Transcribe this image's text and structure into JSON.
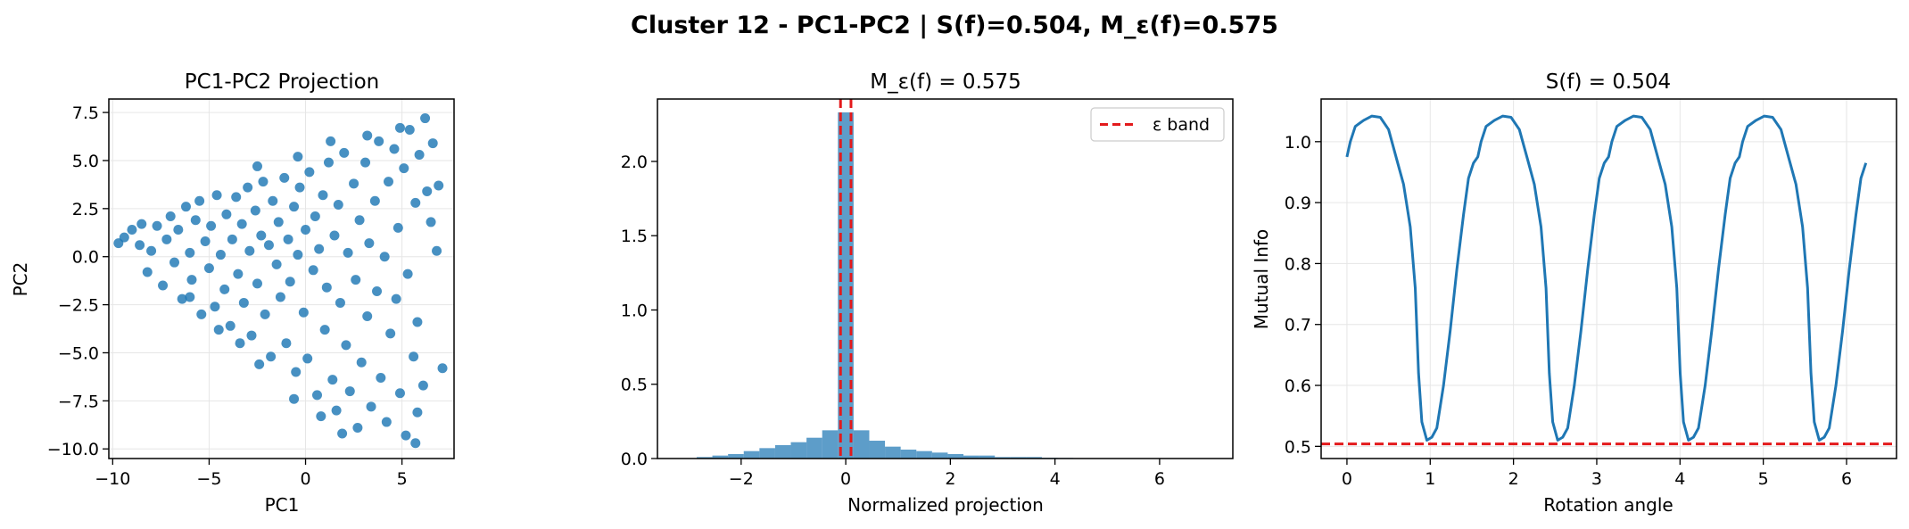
{
  "figure_title": "Cluster 12 - PC1-PC2 | S(f)=0.504, M_ε(f)=0.575",
  "colors": {
    "primary": "#1f77b4",
    "reference": "#e31a1c",
    "grid": "#e6e6e6"
  },
  "chart_data": [
    {
      "type": "scatter",
      "title": "PC1-PC2 Projection",
      "xlabel": "PC1",
      "ylabel": "PC2",
      "xlim": [
        -10.2,
        7.7
      ],
      "ylim": [
        -10.5,
        8.2
      ],
      "xticks": [
        -10,
        -5,
        0,
        5
      ],
      "yticks": [
        -10.0,
        -7.5,
        -5.0,
        -2.5,
        0.0,
        2.5,
        5.0,
        7.5
      ],
      "xtick_labels": [
        "−10",
        "−5",
        "0",
        "5"
      ],
      "ytick_labels": [
        "−10.0",
        "−7.5",
        "−5.0",
        "−2.5",
        "0.0",
        "2.5",
        "5.0",
        "7.5"
      ],
      "grid": true,
      "points": [
        [
          -9.7,
          0.7
        ],
        [
          -9.4,
          1.0
        ],
        [
          -9.0,
          1.4
        ],
        [
          -8.6,
          0.6
        ],
        [
          -8.5,
          1.7
        ],
        [
          -8.2,
          -0.8
        ],
        [
          -8.0,
          0.3
        ],
        [
          -7.7,
          1.6
        ],
        [
          -7.4,
          -1.5
        ],
        [
          -7.2,
          0.9
        ],
        [
          -7.0,
          2.1
        ],
        [
          -6.8,
          -0.3
        ],
        [
          -6.6,
          1.4
        ],
        [
          -6.4,
          -2.2
        ],
        [
          -6.2,
          2.6
        ],
        [
          -6.0,
          0.2
        ],
        [
          -5.9,
          -1.2
        ],
        [
          -5.7,
          1.9
        ],
        [
          -5.5,
          2.9
        ],
        [
          -5.4,
          -3.0
        ],
        [
          -5.2,
          0.8
        ],
        [
          -5.0,
          -0.6
        ],
        [
          -4.9,
          1.6
        ],
        [
          -4.7,
          -2.6
        ],
        [
          -4.6,
          3.2
        ],
        [
          -4.4,
          0.1
        ],
        [
          -4.2,
          -1.7
        ],
        [
          -4.1,
          2.2
        ],
        [
          -3.9,
          -3.6
        ],
        [
          -3.8,
          0.9
        ],
        [
          -3.6,
          3.1
        ],
        [
          -3.5,
          -0.9
        ],
        [
          -3.3,
          1.7
        ],
        [
          -3.2,
          -2.4
        ],
        [
          -3.0,
          3.6
        ],
        [
          -2.9,
          0.3
        ],
        [
          -2.8,
          -4.1
        ],
        [
          -2.6,
          2.4
        ],
        [
          -2.5,
          -1.4
        ],
        [
          -2.3,
          1.1
        ],
        [
          -2.2,
          3.9
        ],
        [
          -2.1,
          -3.0
        ],
        [
          -1.9,
          0.6
        ],
        [
          -1.8,
          -5.2
        ],
        [
          -1.7,
          2.9
        ],
        [
          -1.5,
          -0.4
        ],
        [
          -1.4,
          1.8
        ],
        [
          -1.3,
          -2.1
        ],
        [
          -1.1,
          4.1
        ],
        [
          -1.0,
          -4.5
        ],
        [
          -0.9,
          0.9
        ],
        [
          -0.8,
          -1.3
        ],
        [
          -0.6,
          2.6
        ],
        [
          -0.5,
          -6.0
        ],
        [
          -0.4,
          0.1
        ],
        [
          -0.3,
          3.6
        ],
        [
          -0.1,
          -2.9
        ],
        [
          0.0,
          1.4
        ],
        [
          0.1,
          -5.3
        ],
        [
          0.2,
          4.4
        ],
        [
          0.4,
          -0.7
        ],
        [
          0.5,
          2.1
        ],
        [
          0.6,
          -7.2
        ],
        [
          0.7,
          0.4
        ],
        [
          0.9,
          3.2
        ],
        [
          1.0,
          -3.8
        ],
        [
          1.1,
          -1.6
        ],
        [
          1.2,
          4.9
        ],
        [
          1.4,
          -6.4
        ],
        [
          1.5,
          1.1
        ],
        [
          1.6,
          -8.0
        ],
        [
          1.7,
          2.7
        ],
        [
          1.8,
          -2.4
        ],
        [
          2.0,
          5.4
        ],
        [
          2.1,
          -4.6
        ],
        [
          2.2,
          0.2
        ],
        [
          2.3,
          -7.0
        ],
        [
          2.5,
          3.8
        ],
        [
          2.6,
          -1.2
        ],
        [
          2.7,
          -8.9
        ],
        [
          2.8,
          1.9
        ],
        [
          2.9,
          -5.5
        ],
        [
          3.1,
          4.9
        ],
        [
          3.2,
          -3.1
        ],
        [
          3.3,
          0.7
        ],
        [
          3.4,
          -7.8
        ],
        [
          3.6,
          2.9
        ],
        [
          3.7,
          -1.8
        ],
        [
          3.8,
          6.0
        ],
        [
          3.9,
          -6.3
        ],
        [
          4.1,
          0.0
        ],
        [
          4.2,
          -8.6
        ],
        [
          4.3,
          3.9
        ],
        [
          4.4,
          -4.0
        ],
        [
          4.6,
          5.6
        ],
        [
          4.7,
          -2.2
        ],
        [
          4.8,
          1.5
        ],
        [
          4.9,
          -7.1
        ],
        [
          5.1,
          4.6
        ],
        [
          5.2,
          -9.3
        ],
        [
          5.3,
          -0.9
        ],
        [
          5.4,
          6.6
        ],
        [
          5.6,
          -5.2
        ],
        [
          5.7,
          2.8
        ],
        [
          5.8,
          -8.1
        ],
        [
          5.9,
          5.3
        ],
        [
          6.1,
          -6.7
        ],
        [
          6.2,
          7.2
        ],
        [
          6.3,
          3.4
        ],
        [
          6.6,
          5.9
        ],
        [
          6.8,
          0.3
        ],
        [
          7.1,
          -5.8
        ],
        [
          -6.0,
          -2.1
        ],
        [
          -4.5,
          -3.8
        ],
        [
          -3.4,
          -4.5
        ],
        [
          -2.4,
          -5.6
        ],
        [
          -0.6,
          -7.4
        ],
        [
          0.8,
          -8.3
        ],
        [
          1.9,
          -9.2
        ],
        [
          5.7,
          -9.7
        ],
        [
          4.9,
          6.7
        ],
        [
          3.2,
          6.3
        ],
        [
          1.3,
          6.0
        ],
        [
          -0.4,
          5.2
        ],
        [
          -2.5,
          4.7
        ],
        [
          5.8,
          -3.4
        ],
        [
          6.5,
          1.8
        ],
        [
          6.9,
          3.7
        ]
      ]
    },
    {
      "type": "bar",
      "title": "M_ε(f) = 0.575",
      "xlabel": "Normalized projection",
      "ylabel": "",
      "xlim": [
        -3.6,
        7.4
      ],
      "ylim": [
        0,
        2.42
      ],
      "xticks": [
        -2,
        0,
        2,
        4,
        6
      ],
      "yticks": [
        0.0,
        0.5,
        1.0,
        1.5,
        2.0
      ],
      "xtick_labels": [
        "−2",
        "0",
        "2",
        "4",
        "6"
      ],
      "ytick_labels": [
        "0.0",
        "0.5",
        "1.0",
        "1.5",
        "2.0"
      ],
      "grid": false,
      "bins": [
        {
          "x0": -2.85,
          "x1": -2.55,
          "h": 0.01
        },
        {
          "x0": -2.55,
          "x1": -2.25,
          "h": 0.02
        },
        {
          "x0": -2.25,
          "x1": -1.95,
          "h": 0.03
        },
        {
          "x0": -1.95,
          "x1": -1.65,
          "h": 0.05
        },
        {
          "x0": -1.65,
          "x1": -1.35,
          "h": 0.07
        },
        {
          "x0": -1.35,
          "x1": -1.05,
          "h": 0.09
        },
        {
          "x0": -1.05,
          "x1": -0.75,
          "h": 0.11
        },
        {
          "x0": -0.75,
          "x1": -0.45,
          "h": 0.14
        },
        {
          "x0": -0.45,
          "x1": -0.15,
          "h": 0.19
        },
        {
          "x0": -0.15,
          "x1": 0.15,
          "h": 2.33
        },
        {
          "x0": 0.15,
          "x1": 0.45,
          "h": 0.19
        },
        {
          "x0": 0.45,
          "x1": 0.75,
          "h": 0.12
        },
        {
          "x0": 0.75,
          "x1": 1.05,
          "h": 0.08
        },
        {
          "x0": 1.05,
          "x1": 1.35,
          "h": 0.06
        },
        {
          "x0": 1.35,
          "x1": 1.65,
          "h": 0.05
        },
        {
          "x0": 1.65,
          "x1": 1.95,
          "h": 0.04
        },
        {
          "x0": 1.95,
          "x1": 2.25,
          "h": 0.03
        },
        {
          "x0": 2.25,
          "x1": 2.55,
          "h": 0.02
        },
        {
          "x0": 2.55,
          "x1": 2.85,
          "h": 0.02
        },
        {
          "x0": 2.85,
          "x1": 3.15,
          "h": 0.01
        },
        {
          "x0": 3.15,
          "x1": 3.45,
          "h": 0.01
        },
        {
          "x0": 3.45,
          "x1": 3.75,
          "h": 0.01
        },
        {
          "x0": 3.75,
          "x1": 4.05,
          "h": 0.005
        },
        {
          "x0": 4.05,
          "x1": 4.35,
          "h": 0.004
        }
      ],
      "epsilon_band": [
        -0.1,
        0.1
      ],
      "legend": [
        {
          "label": "ε band",
          "style": "dashed",
          "color": "#e31a1c"
        }
      ],
      "legend_position": "top-right"
    },
    {
      "type": "line",
      "title": "S(f) = 0.504",
      "xlabel": "Rotation angle",
      "ylabel": "Mutual Info",
      "xlim": [
        -0.31,
        6.6
      ],
      "ylim": [
        0.48,
        1.07
      ],
      "xticks": [
        0,
        1,
        2,
        3,
        4,
        5,
        6
      ],
      "yticks": [
        0.5,
        0.6,
        0.7,
        0.8,
        0.9,
        1.0
      ],
      "xtick_labels": [
        "0",
        "1",
        "2",
        "3",
        "4",
        "5",
        "6"
      ],
      "ytick_labels": [
        "0.5",
        "0.6",
        "0.7",
        "0.8",
        "0.9",
        "1.0"
      ],
      "grid": true,
      "reference_value": 0.504,
      "period": 1.5708,
      "x_end": 6.28,
      "curve": [
        [
          0.0,
          0.975
        ],
        [
          0.04,
          1.0
        ],
        [
          0.1,
          1.025
        ],
        [
          0.2,
          1.035
        ],
        [
          0.3,
          1.042
        ],
        [
          0.4,
          1.04
        ],
        [
          0.5,
          1.02
        ],
        [
          0.6,
          0.97
        ],
        [
          0.68,
          0.93
        ],
        [
          0.76,
          0.86
        ],
        [
          0.82,
          0.76
        ],
        [
          0.86,
          0.62
        ],
        [
          0.9,
          0.54
        ],
        [
          0.96,
          0.51
        ],
        [
          1.02,
          0.515
        ],
        [
          1.08,
          0.53
        ],
        [
          1.16,
          0.6
        ],
        [
          1.24,
          0.69
        ],
        [
          1.32,
          0.79
        ],
        [
          1.4,
          0.88
        ],
        [
          1.46,
          0.94
        ],
        [
          1.52,
          0.965
        ],
        [
          1.5708,
          0.975
        ]
      ]
    }
  ]
}
